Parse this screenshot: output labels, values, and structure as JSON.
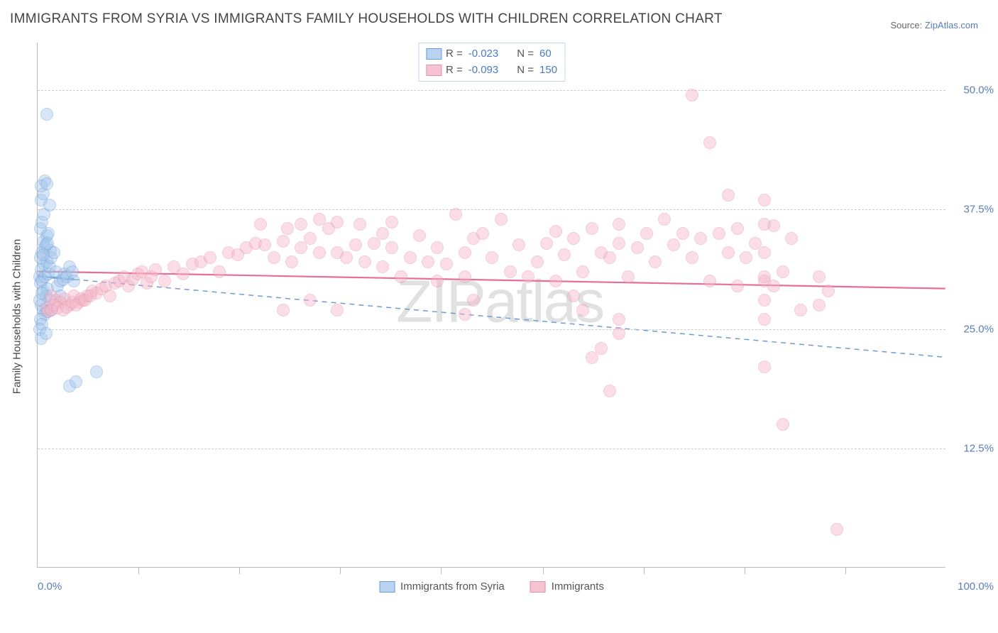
{
  "title": "IMMIGRANTS FROM SYRIA VS IMMIGRANTS FAMILY HOUSEHOLDS WITH CHILDREN CORRELATION CHART",
  "source_label": "Source: ",
  "source_value": "ZipAtlas.com",
  "ylabel": "Family Households with Children",
  "watermark_z": "ZIP",
  "watermark_rest": "atlas",
  "chart": {
    "type": "scatter",
    "xlim": [
      0,
      100
    ],
    "ylim": [
      0,
      55
    ],
    "yticks": [
      {
        "v": 12.5,
        "label": "12.5%"
      },
      {
        "v": 25.0,
        "label": "25.0%"
      },
      {
        "v": 37.5,
        "label": "37.5%"
      },
      {
        "v": 50.0,
        "label": "50.0%"
      }
    ],
    "xticks_minor": [
      11.1,
      22.2,
      33.3,
      44.4,
      55.6,
      66.7,
      77.8,
      88.9
    ],
    "xtick_labels": [
      {
        "v": 0,
        "label": "0.0%",
        "align": "left"
      },
      {
        "v": 100,
        "label": "100.0%",
        "align": "right"
      }
    ],
    "grid_color": "#cccccc",
    "background": "#ffffff",
    "axis_color": "#bbbbbb",
    "marker_radius": 9,
    "marker_stroke_width": 1.2,
    "series": [
      {
        "name": "Immigrants from Syria",
        "fill": "#a6c8ec",
        "fill_opacity": 0.45,
        "stroke": "#6d9cd4",
        "swatch_fill": "#b9d3f0",
        "swatch_border": "#6d9cd4",
        "stats": {
          "R_label": "R =",
          "R": "-0.023",
          "N_label": "N =",
          "N": "60"
        },
        "points": [
          [
            0.2,
            30.5
          ],
          [
            0.3,
            29.8
          ],
          [
            0.4,
            31.2
          ],
          [
            0.5,
            30.1
          ],
          [
            0.6,
            29.0
          ],
          [
            0.7,
            31.8
          ],
          [
            0.8,
            30.5
          ],
          [
            0.9,
            28.5
          ],
          [
            1.0,
            32.0
          ],
          [
            1.1,
            29.2
          ],
          [
            1.2,
            30.8
          ],
          [
            1.3,
            31.5
          ],
          [
            0.5,
            33.0
          ],
          [
            0.6,
            34.2
          ],
          [
            0.8,
            33.5
          ],
          [
            1.0,
            34.8
          ],
          [
            1.2,
            35.0
          ],
          [
            1.4,
            33.2
          ],
          [
            0.4,
            27.5
          ],
          [
            0.6,
            27.0
          ],
          [
            0.8,
            26.5
          ],
          [
            1.0,
            26.8
          ],
          [
            0.3,
            26.0
          ],
          [
            0.5,
            25.5
          ],
          [
            0.3,
            35.5
          ],
          [
            0.5,
            36.2
          ],
          [
            0.7,
            37.0
          ],
          [
            0.4,
            38.5
          ],
          [
            0.6,
            39.2
          ],
          [
            0.8,
            40.5
          ],
          [
            0.4,
            40.0
          ],
          [
            1.0,
            40.2
          ],
          [
            1.5,
            32.5
          ],
          [
            1.8,
            33.0
          ],
          [
            2.0,
            31.0
          ],
          [
            2.2,
            29.5
          ],
          [
            2.5,
            30.0
          ],
          [
            2.8,
            30.2
          ],
          [
            3.0,
            30.8
          ],
          [
            3.5,
            31.5
          ],
          [
            1.3,
            28.0
          ],
          [
            1.5,
            27.0
          ],
          [
            1.3,
            38.0
          ],
          [
            0.2,
            25.0
          ],
          [
            0.4,
            24.0
          ],
          [
            0.9,
            24.5
          ],
          [
            3.2,
            30.5
          ],
          [
            2.5,
            28.5
          ],
          [
            3.8,
            31.0
          ],
          [
            4.0,
            30.0
          ],
          [
            0.3,
            32.5
          ],
          [
            0.6,
            32.8
          ],
          [
            0.9,
            33.8
          ],
          [
            1.1,
            34.0
          ],
          [
            3.5,
            19.0
          ],
          [
            4.2,
            19.5
          ],
          [
            1.0,
            47.5
          ],
          [
            6.5,
            20.5
          ],
          [
            0.2,
            28.0
          ],
          [
            0.5,
            28.8
          ]
        ],
        "trend": {
          "y0": 30.5,
          "y1": 22.0,
          "style": "dashed",
          "color": "#6d9cd4",
          "width": 1.5,
          "solid_until": 4
        }
      },
      {
        "name": "Immigrants",
        "fill": "#f4b6c8",
        "fill_opacity": 0.45,
        "stroke": "#e291aa",
        "swatch_fill": "#f7c2d1",
        "swatch_border": "#e291aa",
        "stats": {
          "R_label": "R =",
          "R": "-0.093",
          "N_label": "N =",
          "N": "150"
        },
        "points": [
          [
            1.5,
            28.5
          ],
          [
            2.0,
            28.0
          ],
          [
            2.5,
            27.8
          ],
          [
            3.0,
            28.2
          ],
          [
            3.5,
            27.5
          ],
          [
            4.0,
            28.5
          ],
          [
            4.5,
            27.8
          ],
          [
            5.0,
            28.0
          ],
          [
            5.5,
            28.5
          ],
          [
            6.0,
            29.0
          ],
          [
            6.5,
            28.8
          ],
          [
            7.0,
            29.2
          ],
          [
            7.5,
            29.5
          ],
          [
            8.0,
            28.5
          ],
          [
            8.5,
            29.8
          ],
          [
            9.0,
            30.0
          ],
          [
            9.5,
            30.5
          ],
          [
            10.0,
            29.5
          ],
          [
            10.5,
            30.2
          ],
          [
            11.0,
            30.8
          ],
          [
            11.5,
            31.0
          ],
          [
            12.0,
            29.8
          ],
          [
            12.5,
            30.5
          ],
          [
            13.0,
            31.2
          ],
          [
            14.0,
            30.0
          ],
          [
            15.0,
            31.5
          ],
          [
            16.0,
            30.8
          ],
          [
            17.0,
            31.8
          ],
          [
            18.0,
            32.0
          ],
          [
            19.0,
            32.5
          ],
          [
            20.0,
            31.0
          ],
          [
            21.0,
            33.0
          ],
          [
            22.0,
            32.8
          ],
          [
            23.0,
            33.5
          ],
          [
            24.0,
            34.0
          ],
          [
            24.5,
            36.0
          ],
          [
            25.0,
            33.8
          ],
          [
            26.0,
            32.5
          ],
          [
            27.0,
            34.2
          ],
          [
            27.5,
            35.5
          ],
          [
            28.0,
            32.0
          ],
          [
            29.0,
            33.5
          ],
          [
            29.0,
            36.0
          ],
          [
            30.0,
            34.5
          ],
          [
            31.0,
            33.0
          ],
          [
            31.0,
            36.5
          ],
          [
            32.0,
            35.5
          ],
          [
            33.0,
            33.0
          ],
          [
            33.0,
            36.2
          ],
          [
            34.0,
            32.5
          ],
          [
            35.0,
            33.8
          ],
          [
            35.5,
            36.0
          ],
          [
            36.0,
            32.0
          ],
          [
            37.0,
            34.0
          ],
          [
            38.0,
            35.0
          ],
          [
            38.0,
            31.5
          ],
          [
            39.0,
            33.5
          ],
          [
            39.0,
            36.2
          ],
          [
            40.0,
            30.5
          ],
          [
            41.0,
            32.5
          ],
          [
            42.0,
            34.8
          ],
          [
            43.0,
            32.0
          ],
          [
            44.0,
            33.5
          ],
          [
            44.0,
            30.0
          ],
          [
            45.0,
            31.8
          ],
          [
            46.0,
            37.0
          ],
          [
            47.0,
            30.5
          ],
          [
            47.0,
            33.0
          ],
          [
            48.0,
            34.5
          ],
          [
            49.0,
            35.0
          ],
          [
            50.0,
            32.5
          ],
          [
            51.0,
            36.5
          ],
          [
            52.0,
            31.0
          ],
          [
            53.0,
            33.8
          ],
          [
            54.0,
            30.5
          ],
          [
            55.0,
            32.0
          ],
          [
            56.0,
            34.0
          ],
          [
            57.0,
            35.2
          ],
          [
            57.0,
            30.0
          ],
          [
            58.0,
            32.8
          ],
          [
            59.0,
            34.5
          ],
          [
            60.0,
            31.0
          ],
          [
            61.0,
            35.5
          ],
          [
            62.0,
            33.0
          ],
          [
            63.0,
            32.5
          ],
          [
            64.0,
            34.0
          ],
          [
            64.0,
            36.0
          ],
          [
            65.0,
            30.5
          ],
          [
            66.0,
            33.5
          ],
          [
            67.0,
            35.0
          ],
          [
            68.0,
            32.0
          ],
          [
            69.0,
            36.5
          ],
          [
            70.0,
            33.8
          ],
          [
            71.0,
            35.0
          ],
          [
            72.0,
            32.5
          ],
          [
            73.0,
            34.5
          ],
          [
            74.0,
            30.0
          ],
          [
            75.0,
            35.0
          ],
          [
            76.0,
            33.0
          ],
          [
            77.0,
            29.5
          ],
          [
            78.0,
            32.5
          ],
          [
            79.0,
            34.0
          ],
          [
            80.0,
            30.0
          ],
          [
            27.0,
            27.0
          ],
          [
            30.0,
            28.0
          ],
          [
            33.0,
            27.0
          ],
          [
            47.0,
            26.5
          ],
          [
            48.0,
            28.0
          ],
          [
            61.0,
            22.0
          ],
          [
            62.0,
            23.0
          ],
          [
            59.0,
            28.5
          ],
          [
            60.0,
            27.0
          ],
          [
            64.0,
            24.5
          ],
          [
            64.0,
            26.0
          ],
          [
            63.0,
            18.5
          ],
          [
            80.0,
            28.0
          ],
          [
            80.0,
            26.0
          ],
          [
            81.0,
            29.5
          ],
          [
            81.0,
            35.8
          ],
          [
            82.0,
            31.0
          ],
          [
            83.0,
            34.5
          ],
          [
            84.0,
            27.0
          ],
          [
            86.0,
            30.5
          ],
          [
            86.0,
            27.5
          ],
          [
            87.0,
            29.0
          ],
          [
            72.0,
            49.5
          ],
          [
            74.0,
            44.5
          ],
          [
            76.0,
            39.0
          ],
          [
            77.0,
            35.5
          ],
          [
            80.0,
            38.5
          ],
          [
            80.0,
            36.0
          ],
          [
            80.0,
            33.0
          ],
          [
            80.0,
            30.5
          ],
          [
            80.0,
            21.0
          ],
          [
            82.0,
            15.0
          ],
          [
            88.0,
            4.0
          ],
          [
            1.0,
            27.2
          ],
          [
            1.2,
            26.8
          ],
          [
            1.5,
            27.0
          ],
          [
            1.8,
            27.5
          ],
          [
            2.2,
            27.2
          ],
          [
            2.8,
            27.0
          ],
          [
            3.2,
            27.3
          ],
          [
            3.8,
            27.8
          ],
          [
            4.2,
            27.5
          ],
          [
            4.8,
            28.2
          ],
          [
            5.2,
            28.0
          ],
          [
            5.8,
            28.5
          ]
        ],
        "trend": {
          "y0": 31.0,
          "y1": 29.2,
          "style": "solid",
          "color": "#e76e94",
          "width": 2.2
        }
      }
    ]
  },
  "legend_bottom": [
    {
      "label": "Immigrants from Syria",
      "fill": "#b9d3f0",
      "border": "#6d9cd4"
    },
    {
      "label": "Immigrants",
      "fill": "#f7c2d1",
      "border": "#e291aa"
    }
  ]
}
